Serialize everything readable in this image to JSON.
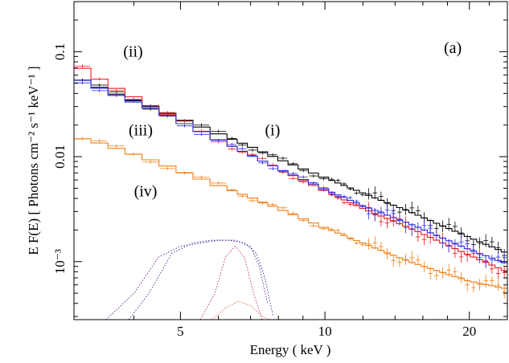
{
  "chart_data": {
    "type": "line",
    "panel_label": "(a)",
    "xlabel": "Energy ( keV )",
    "ylabel": "E F(E) [ Photons cm⁻² s⁻¹ keV⁻¹ ]",
    "x_scale": "log",
    "y_scale": "log",
    "xlim": [
      3.0,
      24.0
    ],
    "ylim": [
      0.00028,
      0.3
    ],
    "x_ticks": [
      5,
      10,
      20
    ],
    "x_tick_labels": [
      "5",
      "10",
      "20"
    ],
    "y_ticks": [
      0.001,
      0.01,
      0.1
    ],
    "y_tick_labels": [
      "10⁻³",
      "0.01",
      "0.1"
    ],
    "annotations": [
      {
        "text": "(ii)",
        "x": 3.8,
        "y": 0.09
      },
      {
        "text": "(iii)",
        "x": 3.9,
        "y": 0.016
      },
      {
        "text": "(i)",
        "x": 7.5,
        "y": 0.016
      },
      {
        "text": "(iv)",
        "x": 4.0,
        "y": 0.0042
      }
    ],
    "series": [
      {
        "color": "#000000",
        "x": [
          3.0,
          3.5,
          4.0,
          4.5,
          5.0,
          6.0,
          7.0,
          8.0,
          10.0,
          12.0,
          15.0,
          20.0,
          24.0
        ],
        "y": [
          0.058,
          0.043,
          0.034,
          0.028,
          0.023,
          0.0165,
          0.0125,
          0.0095,
          0.0063,
          0.0045,
          0.003,
          0.0017,
          0.0012
        ]
      },
      {
        "color": "#e8191c",
        "x": [
          3.0,
          3.5,
          4.0,
          4.5,
          5.0,
          6.0,
          7.0,
          8.0,
          10.0,
          12.0,
          15.0,
          20.0,
          24.0
        ],
        "y": [
          0.078,
          0.05,
          0.037,
          0.028,
          0.0215,
          0.0145,
          0.0103,
          0.0077,
          0.0047,
          0.0032,
          0.0021,
          0.00115,
          0.0008
        ]
      },
      {
        "color": "#2a2ae0",
        "x": [
          3.0,
          3.5,
          4.0,
          4.5,
          5.0,
          6.0,
          7.0,
          8.0,
          10.0,
          12.0,
          15.0,
          20.0,
          24.0
        ],
        "y": [
          0.058,
          0.042,
          0.033,
          0.027,
          0.0215,
          0.0145,
          0.0103,
          0.0077,
          0.0049,
          0.0034,
          0.0023,
          0.0013,
          0.00095
        ]
      },
      {
        "color": "#f07f12",
        "x": [
          3.0,
          3.5,
          4.0,
          4.5,
          5.0,
          6.0,
          7.0,
          8.0,
          10.0,
          12.0,
          15.0,
          20.0,
          24.0
        ],
        "y": [
          0.0155,
          0.013,
          0.0105,
          0.0088,
          0.0073,
          0.0053,
          0.0041,
          0.0032,
          0.0021,
          0.0015,
          0.001,
          0.00065,
          0.00055
        ]
      }
    ],
    "model_components": [
      {
        "color": "#6a2a90",
        "style": "dotted",
        "x": [
          3.5,
          4.0,
          4.5,
          5.0,
          5.5,
          6.0,
          6.5,
          7.0,
          7.3,
          7.6
        ],
        "y": [
          0.00028,
          0.0005,
          0.0011,
          0.0014,
          0.0015,
          0.0016,
          0.0016,
          0.0014,
          0.0009,
          0.0004
        ]
      },
      {
        "color": "#3c3c9c",
        "style": "dotted",
        "x": [
          3.9,
          4.3,
          4.8,
          5.3,
          5.8,
          6.3,
          6.8,
          7.2,
          7.5,
          7.8
        ],
        "y": [
          0.00028,
          0.0005,
          0.0012,
          0.0015,
          0.0016,
          0.0016,
          0.0015,
          0.0012,
          0.0007,
          0.0003
        ]
      },
      {
        "color": "#c0397a",
        "style": "dotted",
        "x": [
          5.5,
          5.9,
          6.2,
          6.5,
          6.8,
          7.1,
          7.4
        ],
        "y": [
          0.00028,
          0.0005,
          0.0011,
          0.0014,
          0.0011,
          0.0005,
          0.00028
        ]
      },
      {
        "color": "#e07050",
        "style": "dotted",
        "x": [
          5.8,
          6.2,
          6.6,
          7.0,
          7.4,
          7.7
        ],
        "y": [
          0.00028,
          0.00036,
          0.00042,
          0.00038,
          0.0003,
          0.00028
        ]
      }
    ]
  }
}
